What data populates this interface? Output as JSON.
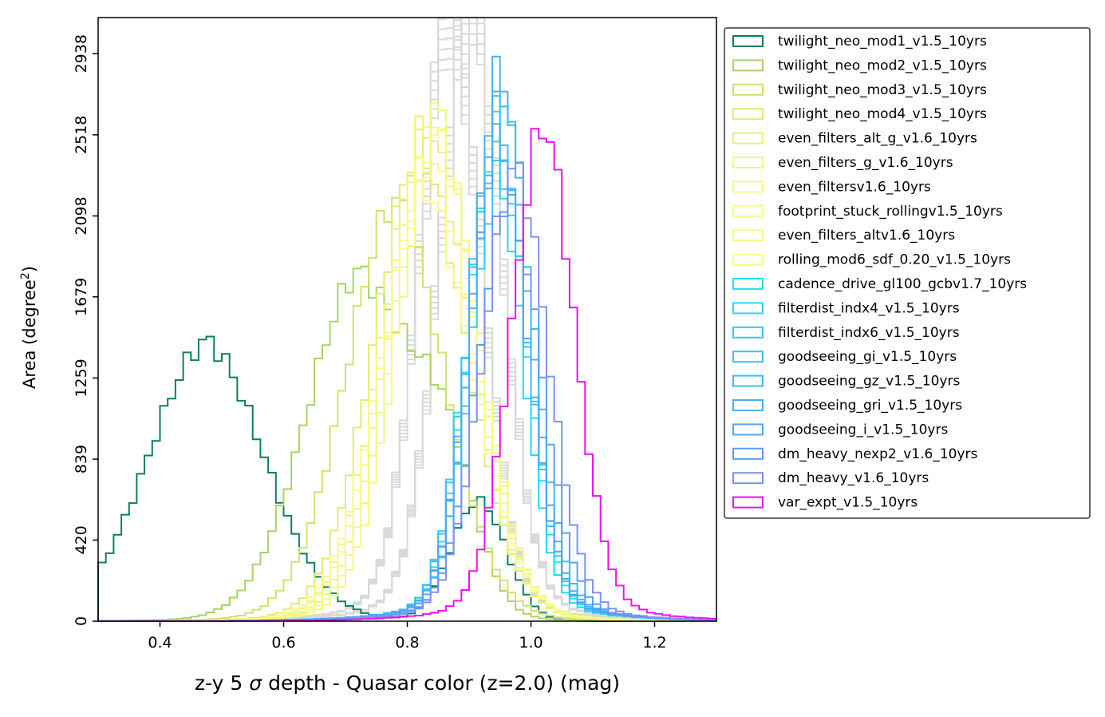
{
  "chart_data": {
    "type": "histogram",
    "xlabel_parts": [
      "z-y 5 ",
      "σ",
      " depth - Quasar color (z=2.0) (mag)"
    ],
    "ylabel_parts": [
      "Area (degree",
      "2",
      ")"
    ],
    "xlim": [
      0.3,
      1.3
    ],
    "ylim": [
      0,
      3125
    ],
    "xticks": [
      0.4,
      0.6,
      0.8,
      1.0,
      1.2
    ],
    "xtick_labels": [
      "0.4",
      "0.6",
      "0.8",
      "1.0",
      "1.2"
    ],
    "yticks": [
      0,
      420,
      839,
      1259,
      1679,
      2098,
      2518,
      2938
    ],
    "ytick_labels": [
      "0",
      "420",
      "839",
      "1259",
      "1679",
      "2098",
      "2518",
      "2938"
    ],
    "legend_position": "outside right, top",
    "series": [
      {
        "name": "twilight_neo_mod1_v1.5_10yrs",
        "color": "#0b7f62",
        "center": 0.475,
        "width": 0.095,
        "peak": 1300,
        "secondary": {
          "center": 0.915,
          "width": 0.045,
          "peak": 620
        }
      },
      {
        "name": "twilight_neo_mod2_v1.5_10yrs",
        "color": "#a9d462",
        "center": 0.72,
        "width": 0.085,
        "peak": 1610,
        "secondary": {
          "center": 0.86,
          "width": 0.05,
          "peak": 700
        }
      },
      {
        "name": "twilight_neo_mod3_v1.5_10yrs",
        "color": "#cfe36a",
        "center": 0.78,
        "width": 0.08,
        "peak": 1950
      },
      {
        "name": "twilight_neo_mod4_v1.5_10yrs",
        "color": "#e0ec6e",
        "center": 0.82,
        "width": 0.075,
        "peak": 2190
      },
      {
        "name": "even_filters_alt_g_v1.6_10yrs",
        "color": "#eaf275",
        "center": 0.83,
        "width": 0.07,
        "peak": 2300
      },
      {
        "name": "even_filters_g_v1.6_10yrs",
        "color": "#eff77b",
        "center": 0.84,
        "width": 0.068,
        "peak": 2400
      },
      {
        "name": "even_filtersv1.6_10yrs",
        "color": "#f3f97f",
        "center": 0.845,
        "width": 0.068,
        "peak": 2270
      },
      {
        "name": "footprint_stuck_rollingv1.5_10yrs",
        "color": "#f7f986",
        "center": 0.835,
        "width": 0.072,
        "peak": 2150
      },
      {
        "name": "even_filters_altv1.6_10yrs",
        "color": "#f6f87e",
        "center": 0.85,
        "width": 0.066,
        "peak": 2250
      },
      {
        "name": "rolling_mod6_sdf_0.20_v1.5_10yrs",
        "color": "#fbfb84",
        "center": 0.83,
        "width": 0.075,
        "peak": 2000
      },
      {
        "name": "cadence_drive_gl100_gcbv1.7_10yrs",
        "color": "#1ee3f0",
        "center": 0.945,
        "width": 0.045,
        "peak": 2270
      },
      {
        "name": "filterdist_indx4_v1.5_10yrs",
        "color": "#24d8ef",
        "center": 0.94,
        "width": 0.045,
        "peak": 2150
      },
      {
        "name": "filterdist_indx6_v1.5_10yrs",
        "color": "#2dcdf0",
        "center": 0.95,
        "width": 0.046,
        "peak": 2080
      },
      {
        "name": "goodseeing_gi_v1.5_10yrs",
        "color": "#36c3f0",
        "center": 0.945,
        "width": 0.046,
        "peak": 2340
      },
      {
        "name": "goodseeing_gz_v1.5_10yrs",
        "color": "#3ebaf1",
        "center": 0.955,
        "width": 0.046,
        "peak": 2450
      },
      {
        "name": "goodseeing_gri_v1.5_10yrs",
        "color": "#47b1f1",
        "center": 0.95,
        "width": 0.045,
        "peak": 2550
      },
      {
        "name": "goodseeing_i_v1.5_10yrs",
        "color": "#50a8f2",
        "center": 0.948,
        "width": 0.046,
        "peak": 2230
      },
      {
        "name": "dm_heavy_nexp2_v1.6_10yrs",
        "color": "#5f9cf3",
        "center": 0.965,
        "width": 0.05,
        "peak": 2000
      },
      {
        "name": "dm_heavy_v1.6_10yrs",
        "color": "#7d91f0",
        "center": 0.975,
        "width": 0.052,
        "peak": 2100
      },
      {
        "name": "var_expt_v1.5_10yrs",
        "color": "#f00ff0",
        "center": 1.02,
        "width": 0.05,
        "peak": 2300
      }
    ],
    "background_series": {
      "color": "#d8dad8",
      "count": 14,
      "center_min": 0.87,
      "center_max": 0.935,
      "width": 0.05,
      "peak_min": 2650,
      "peak_max": 2970
    }
  }
}
